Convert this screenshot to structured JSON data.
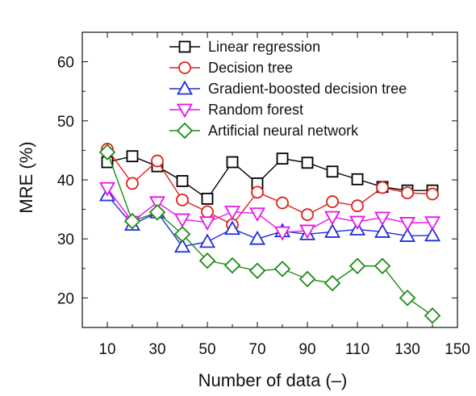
{
  "chart_data": {
    "type": "line",
    "title": "",
    "xlabel": "Number of data (–)",
    "ylabel": "MRE (%)",
    "xlim": [
      0,
      150
    ],
    "ylim": [
      15,
      65
    ],
    "x_ticks": [
      "10",
      "30",
      "50",
      "70",
      "90",
      "110",
      "130",
      "150"
    ],
    "y_ticks": [
      "20",
      "30",
      "40",
      "50",
      "60"
    ],
    "grid": false,
    "legend_position": "top-right",
    "x": [
      10,
      20,
      30,
      40,
      50,
      60,
      70,
      80,
      90,
      100,
      110,
      120,
      130,
      140
    ],
    "series": [
      {
        "name": "Linear regression",
        "color": "#000000",
        "marker": "square",
        "values": [
          43.0,
          44.0,
          42.3,
          39.8,
          36.8,
          43.0,
          39.4,
          43.6,
          42.9,
          41.4,
          40.1,
          38.8,
          38.2,
          38.2
        ]
      },
      {
        "name": "Decision tree",
        "color": "#e0201b",
        "marker": "circle",
        "values": [
          45.2,
          39.4,
          43.2,
          36.6,
          34.6,
          32.4,
          37.9,
          36.1,
          34.1,
          36.3,
          35.6,
          38.7,
          37.8,
          37.6
        ]
      },
      {
        "name": "Gradient-boosted decision tree",
        "color": "#1f2fd8",
        "marker": "triangle-up",
        "values": [
          37.4,
          32.4,
          34.5,
          28.7,
          29.5,
          31.7,
          30.0,
          31.3,
          30.8,
          31.2,
          31.6,
          31.2,
          30.5,
          30.6
        ]
      },
      {
        "name": "Random forest",
        "color": "#e815e8",
        "marker": "triangle-down",
        "values": [
          38.6,
          32.9,
          36.2,
          33.3,
          32.8,
          34.6,
          34.3,
          31.1,
          31.4,
          33.7,
          32.9,
          33.6,
          32.7,
          32.8
        ]
      },
      {
        "name": "Artificial neural network",
        "color": "#1d8a16",
        "marker": "diamond",
        "values": [
          44.7,
          33.0,
          34.5,
          30.8,
          26.3,
          25.5,
          24.6,
          24.9,
          23.2,
          22.5,
          25.4,
          25.4,
          20.0,
          17.0
        ]
      }
    ]
  }
}
